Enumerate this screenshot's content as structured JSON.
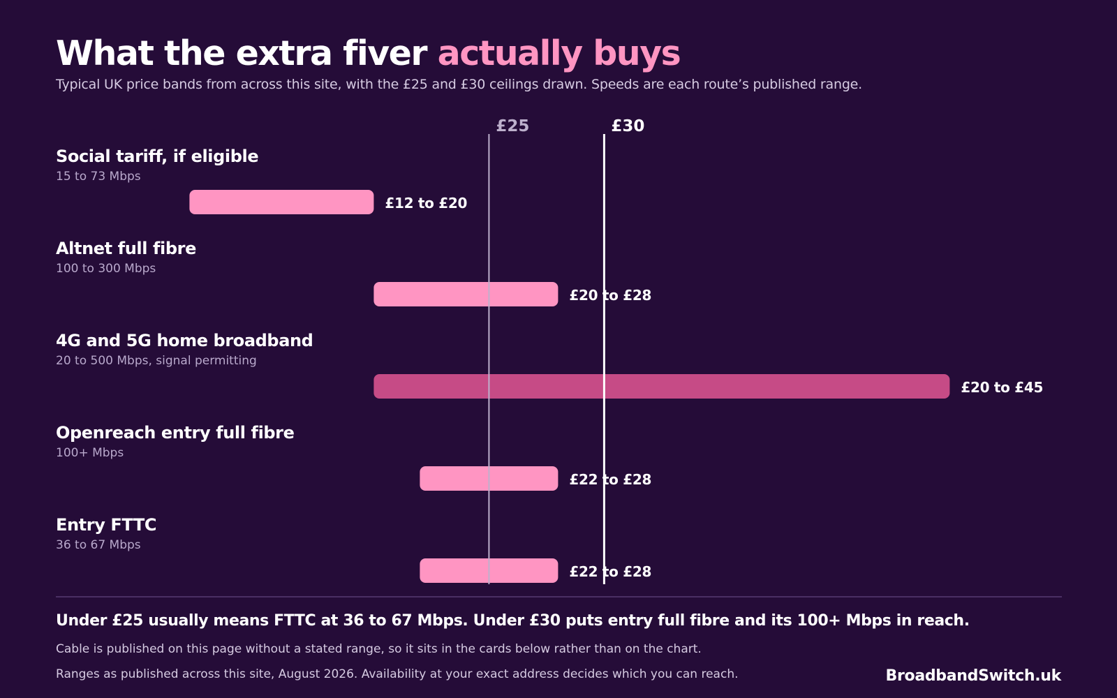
{
  "header": {
    "title_main": "What the extra fiver",
    "title_accent": "actually buys",
    "subtitle": "Typical UK price bands from across this site, with the £25 and £30 ceilings drawn.  Speeds are each route’s published range."
  },
  "chart_data": {
    "type": "bar",
    "orientation": "horizontal-range",
    "title": "What the extra fiver actually buys",
    "subtitle": "Typical UK price bands from across this site, with the £25 and £30 ceilings drawn.  Speeds are each route’s published range.",
    "xlim": [
      6.2,
      70
    ],
    "grid": false,
    "legend": "none",
    "ceilings": [
      {
        "value": 25,
        "label": "£25"
      },
      {
        "value": 30,
        "label": "£30"
      }
    ],
    "categories": [
      "Social tariff, if eligible",
      "Altnet full fibre",
      "4G and 5G home broadband",
      "Openreach entry full fibre",
      "Entry FTTC"
    ],
    "bands": [
      {
        "name": "Social tariff, if eligible",
        "speed": "15 to 73 Mbps",
        "low": 12,
        "high": 20,
        "label": "£12 to £20",
        "highlight": false
      },
      {
        "name": "Altnet full fibre",
        "speed": "100 to 300 Mbps",
        "low": 20,
        "high": 28,
        "label": "£20 to £28",
        "highlight": false
      },
      {
        "name": "4G and 5G home broadband",
        "speed": "20 to 500 Mbps, signal permitting",
        "low": 20,
        "high": 45,
        "label": "£20 to £45",
        "highlight": true
      },
      {
        "name": "Openreach entry full fibre",
        "speed": "100+ Mbps",
        "low": 22,
        "high": 28,
        "label": "£22 to £28",
        "highlight": false
      },
      {
        "name": "Entry FTTC",
        "speed": "36 to 67 Mbps",
        "low": 22,
        "high": 28,
        "label": "£22 to £28",
        "highlight": false
      }
    ]
  },
  "colors": {
    "background": "#250c38",
    "bar": "#ff95c2",
    "bar_highlight": "#c64b86",
    "line_25": "#bdb0cc",
    "line_30": "#ffffff",
    "accent": "#ff95c2"
  },
  "footer": {
    "takeaway": "Under £25 usually means FTTC at 36 to 67 Mbps.  Under £30 puts entry full fibre and its 100+ Mbps in reach.",
    "note": "Cable is published on this page without a stated range, so it sits in the cards below rather than on the chart.",
    "source": "Ranges as published across this site, August 2026.  Availability at your exact address decides which you can reach.",
    "brand": "BroadbandSwitch.uk"
  }
}
